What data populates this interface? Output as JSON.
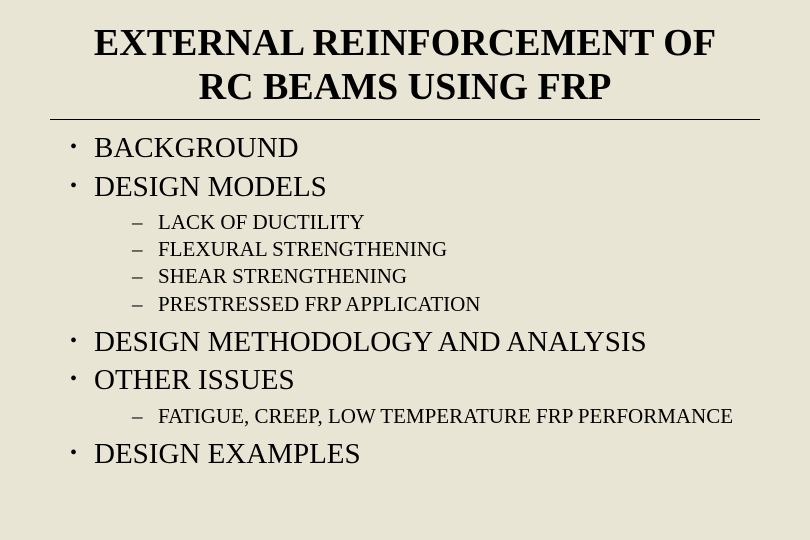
{
  "title": {
    "line1": "EXTERNAL REINFORCEMENT OF",
    "line2": "RC BEAMS USING FRP",
    "font_size": 38,
    "font_weight": "bold",
    "text_align": "center",
    "color": "#000000"
  },
  "background_color": "#e8e5d4",
  "rule_color": "#000000",
  "bullets": {
    "marker": "•",
    "font_size": 29,
    "color": "#000000",
    "items": [
      {
        "text": "BACKGROUND",
        "subitems": []
      },
      {
        "text": "DESIGN MODELS",
        "subitems": [
          "LACK OF DUCTILITY",
          "FLEXURAL STRENGTHENING",
          "SHEAR STRENGTHENING",
          "PRESTRESSED FRP APPLICATION"
        ]
      },
      {
        "text": "DESIGN METHODOLOGY AND ANALYSIS",
        "subitems": []
      },
      {
        "text": "OTHER ISSUES",
        "subitems": [
          "FATIGUE, CREEP, LOW TEMPERATURE FRP PERFORMANCE"
        ]
      },
      {
        "text": "DESIGN EXAMPLES",
        "subitems": []
      }
    ]
  },
  "sub_marker": "–",
  "sub_font_size": 21
}
